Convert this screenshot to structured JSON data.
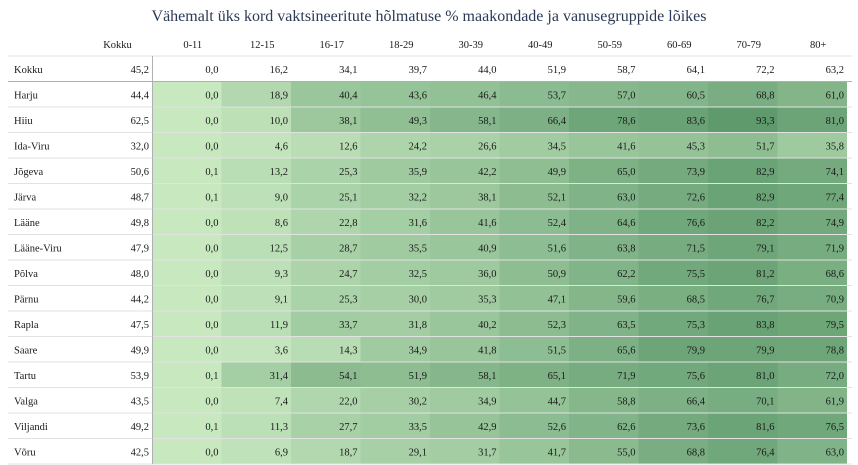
{
  "chart_data": {
    "type": "heatmap",
    "title": "Vähemalt üks kord vaktsineeritute hõlmatuse % maakondade ja vanusegruppide lõikes",
    "columns": [
      "Kokku",
      "0-11",
      "12-15",
      "16-17",
      "18-29",
      "30-39",
      "40-49",
      "50-59",
      "60-69",
      "70-79",
      "80+"
    ],
    "rows": [
      {
        "label": "Kokku",
        "values": [
          "45,2",
          "0,0",
          "16,2",
          "34,1",
          "39,7",
          "44,0",
          "51,9",
          "58,7",
          "64,1",
          "72,2",
          "63,2"
        ]
      },
      {
        "label": "Harju",
        "values": [
          "44,4",
          "0,0",
          "18,9",
          "40,4",
          "43,6",
          "46,4",
          "53,7",
          "57,0",
          "60,5",
          "68,8",
          "61,0"
        ]
      },
      {
        "label": "Hiiu",
        "values": [
          "62,5",
          "0,0",
          "10,0",
          "38,1",
          "49,3",
          "58,1",
          "66,4",
          "78,6",
          "83,6",
          "93,3",
          "81,0"
        ]
      },
      {
        "label": "Ida-Viru",
        "values": [
          "32,0",
          "0,0",
          "4,6",
          "12,6",
          "24,2",
          "26,6",
          "34,5",
          "41,6",
          "45,3",
          "51,7",
          "35,8"
        ]
      },
      {
        "label": "Jõgeva",
        "values": [
          "50,6",
          "0,1",
          "13,2",
          "25,3",
          "35,9",
          "42,2",
          "49,9",
          "65,0",
          "73,9",
          "82,9",
          "74,1"
        ]
      },
      {
        "label": "Järva",
        "values": [
          "48,7",
          "0,1",
          "9,0",
          "25,1",
          "32,2",
          "38,1",
          "52,1",
          "63,0",
          "72,6",
          "82,9",
          "77,4"
        ]
      },
      {
        "label": "Lääne",
        "values": [
          "49,8",
          "0,0",
          "8,6",
          "22,8",
          "31,6",
          "41,6",
          "52,4",
          "64,6",
          "76,6",
          "82,2",
          "74,9"
        ]
      },
      {
        "label": "Lääne-Viru",
        "values": [
          "47,9",
          "0,0",
          "12,5",
          "28,7",
          "35,5",
          "40,9",
          "51,6",
          "63,8",
          "71,5",
          "79,1",
          "71,9"
        ]
      },
      {
        "label": "Põlva",
        "values": [
          "48,0",
          "0,0",
          "9,3",
          "24,7",
          "32,5",
          "36,0",
          "50,9",
          "62,2",
          "75,5",
          "81,2",
          "68,6"
        ]
      },
      {
        "label": "Pärnu",
        "values": [
          "44,2",
          "0,0",
          "9,1",
          "25,3",
          "30,0",
          "35,3",
          "47,1",
          "59,6",
          "68,5",
          "76,7",
          "70,9"
        ]
      },
      {
        "label": "Rapla",
        "values": [
          "47,5",
          "0,0",
          "11,9",
          "33,7",
          "31,8",
          "40,2",
          "52,3",
          "63,5",
          "75,3",
          "83,8",
          "79,5"
        ]
      },
      {
        "label": "Saare",
        "values": [
          "49,9",
          "0,0",
          "3,6",
          "14,3",
          "34,9",
          "41,8",
          "51,5",
          "65,6",
          "79,9",
          "79,9",
          "78,8"
        ]
      },
      {
        "label": "Tartu",
        "values": [
          "53,9",
          "0,1",
          "31,4",
          "54,1",
          "51,9",
          "58,1",
          "65,1",
          "71,9",
          "75,6",
          "81,0",
          "72,0"
        ]
      },
      {
        "label": "Valga",
        "values": [
          "43,5",
          "0,0",
          "7,4",
          "22,0",
          "30,2",
          "34,9",
          "44,7",
          "58,8",
          "66,4",
          "70,1",
          "61,9"
        ]
      },
      {
        "label": "Viljandi",
        "values": [
          "49,2",
          "0,1",
          "11,3",
          "27,7",
          "33,5",
          "42,9",
          "52,6",
          "62,6",
          "73,6",
          "81,6",
          "76,5"
        ]
      },
      {
        "label": "Võru",
        "values": [
          "42,5",
          "0,0",
          "6,9",
          "18,7",
          "29,1",
          "31,7",
          "41,7",
          "55,0",
          "68,8",
          "76,4",
          "63,0"
        ]
      }
    ],
    "color_scale": {
      "low": "#c8e8c0",
      "high": "#5e9a6c",
      "min": 0,
      "max": 93.3
    },
    "white_text_threshold": 79
  }
}
